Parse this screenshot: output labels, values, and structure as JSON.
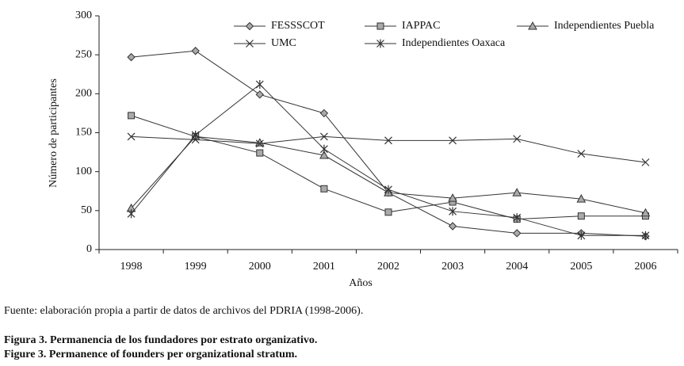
{
  "chart_data": {
    "type": "line",
    "y_label": "Número de participantes",
    "x_label": "Años",
    "categories": [
      "1998",
      "1999",
      "2000",
      "2001",
      "2002",
      "2003",
      "2004",
      "2005",
      "2006"
    ],
    "ylim": [
      0,
      300
    ],
    "yticks": [
      0,
      50,
      100,
      150,
      200,
      250,
      300
    ],
    "grid": false,
    "series": [
      {
        "name": "FESSSCOT",
        "color": "#333333",
        "marker": "diamond",
        "values": [
          247,
          255,
          199,
          175,
          73,
          30,
          21,
          21,
          17
        ]
      },
      {
        "name": "IAPPAC",
        "color": "#333333",
        "marker": "square",
        "values": [
          172,
          145,
          124,
          78,
          48,
          61,
          39,
          43,
          43
        ]
      },
      {
        "name": "Independientes Puebla",
        "color": "#333333",
        "marker": "triangle",
        "values": [
          53,
          145,
          137,
          121,
          73,
          66,
          73,
          65,
          47
        ]
      },
      {
        "name": "UMC",
        "color": "#333333",
        "marker": "x",
        "values": [
          145,
          141,
          136,
          145,
          140,
          140,
          142,
          123,
          112
        ]
      },
      {
        "name": "Independientes Oaxaca",
        "color": "#333333",
        "marker": "star",
        "values": [
          46,
          147,
          212,
          129,
          77,
          49,
          41,
          18,
          18
        ]
      }
    ],
    "source": "Fuente: elaboración propia a partir de datos de archivos del PDRIA (1998-2006).",
    "caption": [
      "Figura 3. Permanencia de los fundadores por estrato organizativo.",
      "Figure 3. Permanence of founders per organizational stratum."
    ]
  }
}
